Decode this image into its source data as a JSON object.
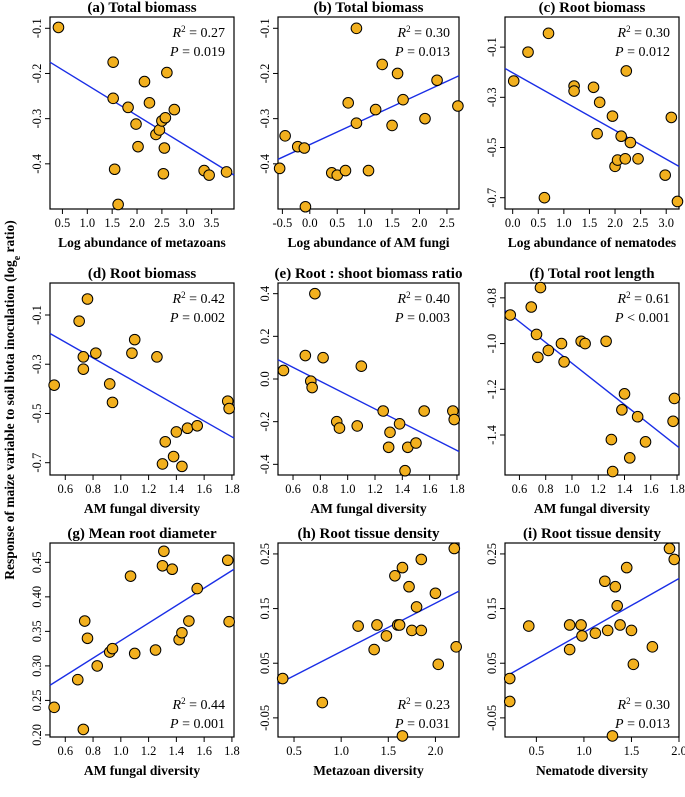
{
  "figure": {
    "ylabel": "Response of maize variable to soil biota inoculation (log",
    "ylabel_sub": "e",
    "ylabel_end": " ratio)"
  },
  "colors": {
    "point_fill": "#f2b01e",
    "point_stroke": "#000000",
    "line": "#1a2ee6"
  },
  "chart_data": [
    {
      "id": "a",
      "type": "scatter",
      "title": "(a) Total biomass",
      "xlabel": "Log abundance of metazoans",
      "r2": "0.27",
      "p": "0.019",
      "p_op": "=",
      "xlim": [
        0.25,
        3.95
      ],
      "ylim": [
        -0.5,
        -0.075
      ],
      "xticks": [
        0.5,
        1.0,
        1.5,
        2.0,
        2.5,
        3.0,
        3.5
      ],
      "xtick_labels": [
        "0.5",
        "1.0",
        "1.5",
        "2.0",
        "2.5",
        "3.0",
        "3.5"
      ],
      "yticks": [
        -0.1,
        -0.2,
        -0.3,
        -0.4
      ],
      "ytick_labels": [
        "-0.1",
        "-0.2",
        "-0.3",
        "-0.4"
      ],
      "fit": [
        [
          0.25,
          -0.175
        ],
        [
          3.95,
          -0.425
        ]
      ],
      "points": [
        [
          0.42,
          -0.098
        ],
        [
          1.52,
          -0.175
        ],
        [
          1.52,
          -0.255
        ],
        [
          1.55,
          -0.412
        ],
        [
          1.62,
          -0.49
        ],
        [
          1.82,
          -0.275
        ],
        [
          1.98,
          -0.312
        ],
        [
          2.02,
          -0.362
        ],
        [
          2.15,
          -0.218
        ],
        [
          2.25,
          -0.265
        ],
        [
          2.38,
          -0.335
        ],
        [
          2.45,
          -0.325
        ],
        [
          2.5,
          -0.305
        ],
        [
          2.53,
          -0.422
        ],
        [
          2.55,
          -0.365
        ],
        [
          2.57,
          -0.298
        ],
        [
          2.6,
          -0.198
        ],
        [
          2.75,
          -0.28
        ],
        [
          3.35,
          -0.415
        ],
        [
          3.45,
          -0.425
        ],
        [
          3.8,
          -0.418
        ]
      ]
    },
    {
      "id": "b",
      "type": "scatter",
      "title": "(b) Total biomass",
      "xlabel": "Log abundance of AM fungi",
      "r2": "0.30",
      "p": "0.013",
      "p_op": "=",
      "xlim": [
        -0.58,
        2.72
      ],
      "ylim": [
        -0.5,
        -0.075
      ],
      "xticks": [
        -0.5,
        0.0,
        0.5,
        1.0,
        1.5,
        2.0,
        2.5
      ],
      "xtick_labels": [
        "-0.5",
        "0.0",
        "0.5",
        "1.0",
        "1.5",
        "2.0",
        "2.5"
      ],
      "yticks": [
        -0.1,
        -0.2,
        -0.3,
        -0.4
      ],
      "ytick_labels": [
        "-0.1",
        "-0.2",
        "-0.3",
        "-0.4"
      ],
      "fit": [
        [
          -0.58,
          -0.39
        ],
        [
          2.72,
          -0.205
        ]
      ],
      "points": [
        [
          -0.55,
          -0.41
        ],
        [
          -0.45,
          -0.338
        ],
        [
          -0.22,
          -0.362
        ],
        [
          -0.1,
          -0.365
        ],
        [
          -0.08,
          -0.495
        ],
        [
          0.4,
          -0.42
        ],
        [
          0.5,
          -0.425
        ],
        [
          0.65,
          -0.415
        ],
        [
          0.7,
          -0.265
        ],
        [
          0.85,
          -0.1
        ],
        [
          0.85,
          -0.31
        ],
        [
          1.07,
          -0.415
        ],
        [
          1.2,
          -0.28
        ],
        [
          1.32,
          -0.18
        ],
        [
          1.5,
          -0.315
        ],
        [
          1.6,
          -0.2
        ],
        [
          1.7,
          -0.258
        ],
        [
          2.1,
          -0.3
        ],
        [
          2.32,
          -0.215
        ],
        [
          2.7,
          -0.272
        ]
      ]
    },
    {
      "id": "c",
      "type": "scatter",
      "title": "(c) Root biomass",
      "xlabel": "Log abundance of nematodes",
      "r2": "0.30",
      "p": "0.012",
      "p_op": "=",
      "xlim": [
        -0.15,
        3.25
      ],
      "ylim": [
        -0.745,
        0.02
      ],
      "xticks": [
        0.0,
        0.5,
        1.0,
        1.5,
        2.0,
        2.5,
        3.0
      ],
      "xtick_labels": [
        "0.0",
        "0.5",
        "1.0",
        "1.5",
        "2.0",
        "2.5",
        "3.0"
      ],
      "yticks": [
        -0.1,
        -0.3,
        -0.5,
        -0.7
      ],
      "ytick_labels": [
        "-0.1",
        "-0.3",
        "-0.5",
        "-0.7"
      ],
      "fit": [
        [
          -0.15,
          -0.185
        ],
        [
          3.25,
          -0.575
        ]
      ],
      "points": [
        [
          0.02,
          -0.235
        ],
        [
          0.3,
          -0.12
        ],
        [
          0.62,
          -0.7
        ],
        [
          0.7,
          -0.045
        ],
        [
          1.2,
          -0.255
        ],
        [
          1.2,
          -0.275
        ],
        [
          1.58,
          -0.26
        ],
        [
          1.65,
          -0.445
        ],
        [
          1.7,
          -0.32
        ],
        [
          1.95,
          -0.375
        ],
        [
          2.0,
          -0.575
        ],
        [
          2.05,
          -0.55
        ],
        [
          2.12,
          -0.455
        ],
        [
          2.2,
          -0.545
        ],
        [
          2.22,
          -0.195
        ],
        [
          2.3,
          -0.48
        ],
        [
          2.45,
          -0.545
        ],
        [
          2.98,
          -0.61
        ],
        [
          3.1,
          -0.38
        ],
        [
          3.22,
          -0.715
        ]
      ]
    },
    {
      "id": "d",
      "type": "scatter",
      "title": "(d) Root biomass",
      "xlabel": "AM fungal diversity",
      "r2": "0.42",
      "p": "0.002",
      "p_op": "=",
      "xlim": [
        0.49,
        1.815
      ],
      "ylim": [
        -0.75,
        0.03
      ],
      "xticks": [
        0.6,
        0.8,
        1.0,
        1.2,
        1.4,
        1.6,
        1.8
      ],
      "xtick_labels": [
        "0.6",
        "0.8",
        "1.0",
        "1.2",
        "1.4",
        "1.6",
        "1.8"
      ],
      "yticks": [
        -0.1,
        -0.3,
        -0.5,
        -0.7
      ],
      "ytick_labels": [
        "-0.1",
        "-0.3",
        "-0.5",
        "-0.7"
      ],
      "fit": [
        [
          0.49,
          -0.175
        ],
        [
          1.815,
          -0.6
        ]
      ],
      "points": [
        [
          0.52,
          -0.385
        ],
        [
          0.7,
          -0.125
        ],
        [
          0.73,
          -0.27
        ],
        [
          0.73,
          -0.32
        ],
        [
          0.76,
          -0.035
        ],
        [
          0.82,
          -0.255
        ],
        [
          0.92,
          -0.38
        ],
        [
          0.94,
          -0.455
        ],
        [
          1.08,
          -0.255
        ],
        [
          1.1,
          -0.2
        ],
        [
          1.26,
          -0.27
        ],
        [
          1.3,
          -0.705
        ],
        [
          1.32,
          -0.615
        ],
        [
          1.38,
          -0.675
        ],
        [
          1.4,
          -0.575
        ],
        [
          1.44,
          -0.715
        ],
        [
          1.48,
          -0.56
        ],
        [
          1.55,
          -0.55
        ],
        [
          1.77,
          -0.45
        ],
        [
          1.78,
          -0.48
        ]
      ]
    },
    {
      "id": "e",
      "type": "scatter",
      "title": "(e) Root : shoot biomass ratio",
      "xlabel": "AM fungal diversity",
      "r2": "0.40",
      "p": "0.003",
      "p_op": "=",
      "xlim": [
        0.49,
        1.815
      ],
      "ylim": [
        -0.45,
        0.45
      ],
      "xticks": [
        0.6,
        0.8,
        1.0,
        1.2,
        1.4,
        1.6,
        1.8
      ],
      "xtick_labels": [
        "0.6",
        "0.8",
        "1.0",
        "1.2",
        "1.4",
        "1.6",
        "1.8"
      ],
      "yticks": [
        0.4,
        0.2,
        0.0,
        -0.2,
        -0.4
      ],
      "ytick_labels": [
        "0.4",
        "0.2",
        "0.0",
        "-0.2",
        "-0.4"
      ],
      "fit": [
        [
          0.49,
          0.09
        ],
        [
          1.815,
          -0.34
        ]
      ],
      "points": [
        [
          0.53,
          0.04
        ],
        [
          0.69,
          0.11
        ],
        [
          0.73,
          -0.01
        ],
        [
          0.74,
          -0.04
        ],
        [
          0.76,
          0.4
        ],
        [
          0.82,
          0.1
        ],
        [
          0.92,
          -0.2
        ],
        [
          0.94,
          -0.23
        ],
        [
          1.07,
          -0.22
        ],
        [
          1.1,
          0.06
        ],
        [
          1.26,
          -0.15
        ],
        [
          1.3,
          -0.32
        ],
        [
          1.31,
          -0.25
        ],
        [
          1.38,
          -0.21
        ],
        [
          1.42,
          -0.43
        ],
        [
          1.44,
          -0.32
        ],
        [
          1.5,
          -0.3
        ],
        [
          1.56,
          -0.15
        ],
        [
          1.77,
          -0.15
        ],
        [
          1.78,
          -0.19
        ]
      ]
    },
    {
      "id": "f",
      "type": "scatter",
      "title": "(f) Total root length",
      "xlabel": "AM fungal diversity",
      "r2": "0.61",
      "p": "0.001",
      "p_op": "<",
      "xlim": [
        0.49,
        1.815
      ],
      "ylim": [
        -1.575,
        -0.735
      ],
      "xticks": [
        0.6,
        0.8,
        1.0,
        1.2,
        1.4,
        1.6,
        1.8
      ],
      "xtick_labels": [
        "0.6",
        "0.8",
        "1.0",
        "1.2",
        "1.4",
        "1.6",
        "1.8"
      ],
      "yticks": [
        -0.8,
        -1.0,
        -1.2,
        -1.4
      ],
      "ytick_labels": [
        "-0.8",
        "-1.0",
        "-1.2",
        "-1.4"
      ],
      "fit": [
        [
          0.49,
          -0.855
        ],
        [
          1.815,
          -1.455
        ]
      ],
      "points": [
        [
          0.53,
          -0.875
        ],
        [
          0.69,
          -0.84
        ],
        [
          0.73,
          -0.96
        ],
        [
          0.74,
          -1.06
        ],
        [
          0.76,
          -0.755
        ],
        [
          0.82,
          -1.03
        ],
        [
          0.92,
          -1.0
        ],
        [
          0.94,
          -1.08
        ],
        [
          1.07,
          -0.99
        ],
        [
          1.1,
          -1.0
        ],
        [
          1.26,
          -0.99
        ],
        [
          1.3,
          -1.42
        ],
        [
          1.31,
          -1.56
        ],
        [
          1.38,
          -1.29
        ],
        [
          1.4,
          -1.22
        ],
        [
          1.44,
          -1.5
        ],
        [
          1.5,
          -1.32
        ],
        [
          1.56,
          -1.43
        ],
        [
          1.77,
          -1.34
        ],
        [
          1.78,
          -1.24
        ]
      ]
    },
    {
      "id": "g",
      "type": "scatter",
      "title": "(g) Mean root diameter",
      "xlabel": "AM fungal diversity",
      "r2": "0.44",
      "p": "0.001",
      "p_op": "=",
      "xlim": [
        0.49,
        1.815
      ],
      "ylim": [
        0.197,
        0.478
      ],
      "xticks": [
        0.6,
        0.8,
        1.0,
        1.2,
        1.4,
        1.6,
        1.8
      ],
      "xtick_labels": [
        "0.6",
        "0.8",
        "1.0",
        "1.2",
        "1.4",
        "1.6",
        "1.8"
      ],
      "yticks": [
        0.2,
        0.25,
        0.3,
        0.35,
        0.4,
        0.45
      ],
      "ytick_labels": [
        "0.20",
        "0.25",
        "0.30",
        "0.35",
        "0.40",
        "0.45"
      ],
      "fit": [
        [
          0.49,
          0.272
        ],
        [
          1.815,
          0.44
        ]
      ],
      "points": [
        [
          0.52,
          0.24
        ],
        [
          0.69,
          0.28
        ],
        [
          0.73,
          0.208
        ],
        [
          0.74,
          0.365
        ],
        [
          0.76,
          0.34
        ],
        [
          0.83,
          0.3
        ],
        [
          0.92,
          0.32
        ],
        [
          0.94,
          0.325
        ],
        [
          1.07,
          0.43
        ],
        [
          1.1,
          0.318
        ],
        [
          1.25,
          0.323
        ],
        [
          1.3,
          0.445
        ],
        [
          1.31,
          0.466
        ],
        [
          1.37,
          0.44
        ],
        [
          1.42,
          0.338
        ],
        [
          1.44,
          0.348
        ],
        [
          1.49,
          0.365
        ],
        [
          1.55,
          0.412
        ],
        [
          1.77,
          0.453
        ],
        [
          1.78,
          0.364
        ]
      ]
    },
    {
      "id": "h",
      "type": "scatter",
      "title": "(h) Root tissue density",
      "xlabel": "Metazoan diversity",
      "r2": "0.23",
      "p": "0.031",
      "p_op": "=",
      "xlim": [
        0.33,
        2.25
      ],
      "ylim": [
        -0.085,
        0.27
      ],
      "xticks": [
        0.5,
        1.0,
        1.5,
        2.0
      ],
      "xtick_labels": [
        "0.5",
        "1.0",
        "1.5",
        "2.0"
      ],
      "yticks": [
        0.25,
        0.15,
        0.05,
        -0.05
      ],
      "ytick_labels": [
        "0.25",
        "0.15",
        "0.05",
        "-0.05"
      ],
      "fit": [
        [
          0.33,
          0.012
        ],
        [
          2.25,
          0.182
        ]
      ],
      "points": [
        [
          0.38,
          0.022
        ],
        [
          0.8,
          -0.022
        ],
        [
          1.18,
          0.118
        ],
        [
          1.35,
          0.075
        ],
        [
          1.38,
          0.12
        ],
        [
          1.48,
          0.1
        ],
        [
          1.57,
          0.21
        ],
        [
          1.6,
          0.12
        ],
        [
          1.62,
          0.12
        ],
        [
          1.65,
          -0.083
        ],
        [
          1.65,
          0.225
        ],
        [
          1.72,
          0.19
        ],
        [
          1.75,
          0.11
        ],
        [
          1.8,
          0.153
        ],
        [
          1.85,
          0.24
        ],
        [
          1.85,
          0.11
        ],
        [
          2.0,
          0.178
        ],
        [
          2.03,
          0.048
        ],
        [
          2.2,
          0.26
        ],
        [
          2.22,
          0.08
        ]
      ]
    },
    {
      "id": "i",
      "type": "scatter",
      "title": "(i) Root tissue density",
      "xlabel": "Nematode diversity",
      "r2": "0.30",
      "p": "0.013",
      "p_op": "=",
      "xlim": [
        0.17,
        2.0
      ],
      "ylim": [
        -0.085,
        0.27
      ],
      "xticks": [
        0.5,
        1.0,
        1.5,
        2.0
      ],
      "xtick_labels": [
        "0.5",
        "1.0",
        "1.5",
        "2.0"
      ],
      "yticks": [
        0.25,
        0.15,
        0.05,
        -0.05
      ],
      "ytick_labels": [
        "0.25",
        "0.15",
        "0.05",
        "-0.05"
      ],
      "fit": [
        [
          0.17,
          0.025
        ],
        [
          2.0,
          0.205
        ]
      ],
      "points": [
        [
          0.22,
          -0.02
        ],
        [
          0.22,
          0.022
        ],
        [
          0.42,
          0.118
        ],
        [
          0.85,
          0.075
        ],
        [
          0.85,
          0.12
        ],
        [
          0.97,
          0.12
        ],
        [
          0.98,
          0.1
        ],
        [
          1.12,
          0.105
        ],
        [
          1.22,
          0.2
        ],
        [
          1.25,
          0.11
        ],
        [
          1.3,
          -0.083
        ],
        [
          1.33,
          0.19
        ],
        [
          1.35,
          0.155
        ],
        [
          1.38,
          0.12
        ],
        [
          1.45,
          0.225
        ],
        [
          1.5,
          0.11
        ],
        [
          1.52,
          0.048
        ],
        [
          1.72,
          0.08
        ],
        [
          1.9,
          0.26
        ],
        [
          1.95,
          0.24
        ]
      ]
    }
  ]
}
